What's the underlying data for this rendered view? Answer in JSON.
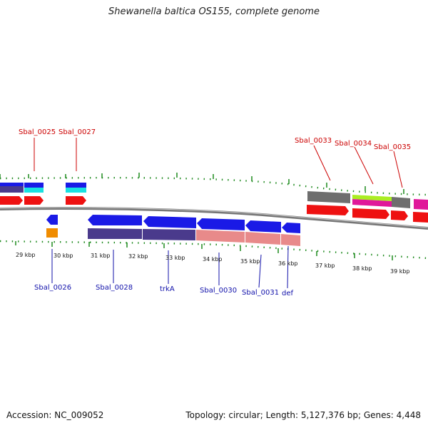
{
  "title": "Shewanella baltica OS155, complete genome",
  "footer": {
    "accession": "Accession: NC_009052",
    "summary": "Topology: circular; Length: 5,127,376 bp; Genes: 4,448"
  },
  "colors": {
    "backbone": "#808080",
    "tick": "#1e8a1e",
    "label_top": "#cc0000",
    "label_bottom": "#1010aa",
    "blue": "#1a1ae6",
    "dark_purple": "#4a3a8c",
    "cyan": "#19e0e0",
    "red": "#ee1111",
    "orange": "#f08c00",
    "gray": "#6e6e6e",
    "salmon": "#e88a8a",
    "lime": "#aaee22",
    "magenta": "#e0189a"
  },
  "ruler_labels": [
    "29 kbp",
    "30 kbp",
    "31 kbp",
    "32 kbp",
    "33 kbp",
    "34 kbp",
    "35 kbp",
    "36 kbp",
    "37 kbp",
    "38 kbp",
    "39 kbp"
  ],
  "top_labels": [
    "Sbal_0025",
    "Sbal_0027",
    "Sbal_0033",
    "Sbal_0034",
    "Sbal_0035"
  ],
  "bottom_labels": [
    "Sbal_0026",
    "Sbal_0028",
    "trkA",
    "Sbal_0030",
    "Sbal_0031",
    "def"
  ]
}
